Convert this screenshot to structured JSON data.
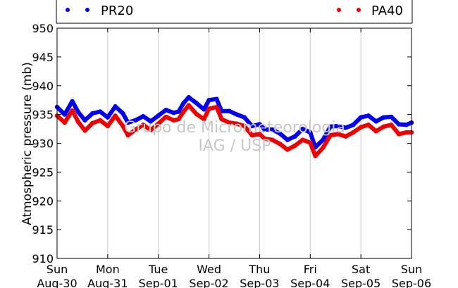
{
  "chart_data": {
    "type": "line",
    "ylabel": "Atmospheric pressure (mb)",
    "ylim": [
      910,
      950
    ],
    "yticks": [
      910,
      915,
      920,
      925,
      930,
      935,
      940,
      945,
      950
    ],
    "x_ticks": [
      {
        "day": "Sun",
        "date": "Aug-30"
      },
      {
        "day": "Mon",
        "date": "Aug-31"
      },
      {
        "day": "Tue",
        "date": "Sep-01"
      },
      {
        "day": "Wed",
        "date": "Sep-02"
      },
      {
        "day": "Thu",
        "date": "Sep-03"
      },
      {
        "day": "Fri",
        "date": "Sep-04"
      },
      {
        "day": "Sat",
        "date": "Sep-05"
      },
      {
        "day": "Sun",
        "date": "Sep-06"
      }
    ],
    "xlim": [
      0,
      7
    ],
    "grid": "vertical",
    "legend_position": "top",
    "watermark": [
      "Grupo de Micrometeorologia",
      "IAG / USP"
    ],
    "series": [
      {
        "name": "PR20",
        "color": "#0000ee",
        "x": [
          0,
          0.15,
          0.3,
          0.42,
          0.55,
          0.7,
          0.85,
          1.0,
          1.15,
          1.3,
          1.4,
          1.55,
          1.7,
          1.85,
          2.0,
          2.15,
          2.3,
          2.4,
          2.5,
          2.6,
          2.75,
          2.9,
          3.0,
          3.15,
          3.25,
          3.4,
          3.55,
          3.7,
          3.85,
          4.0,
          4.1,
          4.25,
          4.4,
          4.55,
          4.7,
          4.85,
          5.0,
          5.1,
          5.25,
          5.4,
          5.55,
          5.7,
          5.85,
          6.0,
          6.15,
          6.3,
          6.45,
          6.6,
          6.75,
          6.9,
          7.0
        ],
        "values": [
          936.3,
          935.0,
          937.3,
          935.4,
          934.0,
          935.2,
          935.5,
          934.5,
          936.4,
          935.2,
          933.6,
          934.0,
          934.7,
          933.8,
          934.8,
          935.8,
          935.3,
          935.5,
          937.0,
          938.0,
          937.0,
          935.9,
          937.5,
          937.7,
          935.6,
          935.6,
          935.0,
          934.5,
          933.0,
          933.3,
          932.4,
          932.4,
          931.7,
          930.6,
          931.2,
          932.5,
          931.9,
          929.3,
          930.6,
          932.9,
          933.0,
          932.7,
          933.2,
          934.5,
          934.8,
          933.8,
          934.5,
          934.6,
          933.3,
          933.2,
          933.6
        ]
      },
      {
        "name": "PA40",
        "color": "#ee0000",
        "x": [
          0,
          0.15,
          0.3,
          0.42,
          0.55,
          0.7,
          0.85,
          1.0,
          1.15,
          1.3,
          1.4,
          1.55,
          1.7,
          1.85,
          2.0,
          2.15,
          2.3,
          2.4,
          2.5,
          2.6,
          2.75,
          2.9,
          3.0,
          3.15,
          3.25,
          3.4,
          3.55,
          3.7,
          3.85,
          4.0,
          4.1,
          4.25,
          4.4,
          4.55,
          4.7,
          4.85,
          5.0,
          5.1,
          5.25,
          5.4,
          5.55,
          5.7,
          5.85,
          6.0,
          6.15,
          6.3,
          6.45,
          6.6,
          6.75,
          6.9,
          7.0
        ],
        "values": [
          934.8,
          933.6,
          935.7,
          933.7,
          932.2,
          933.5,
          934.0,
          933.0,
          934.8,
          933.0,
          931.4,
          932.4,
          933.2,
          932.3,
          933.4,
          934.6,
          934.0,
          934.2,
          935.5,
          936.6,
          935.1,
          934.2,
          936.0,
          936.3,
          934.2,
          933.6,
          933.4,
          933.0,
          931.4,
          931.6,
          930.8,
          930.6,
          929.9,
          928.9,
          929.6,
          930.6,
          930.1,
          927.8,
          929.2,
          931.4,
          931.6,
          931.2,
          931.9,
          932.8,
          933.2,
          932.1,
          932.9,
          933.2,
          931.6,
          931.9,
          931.9
        ]
      }
    ]
  }
}
